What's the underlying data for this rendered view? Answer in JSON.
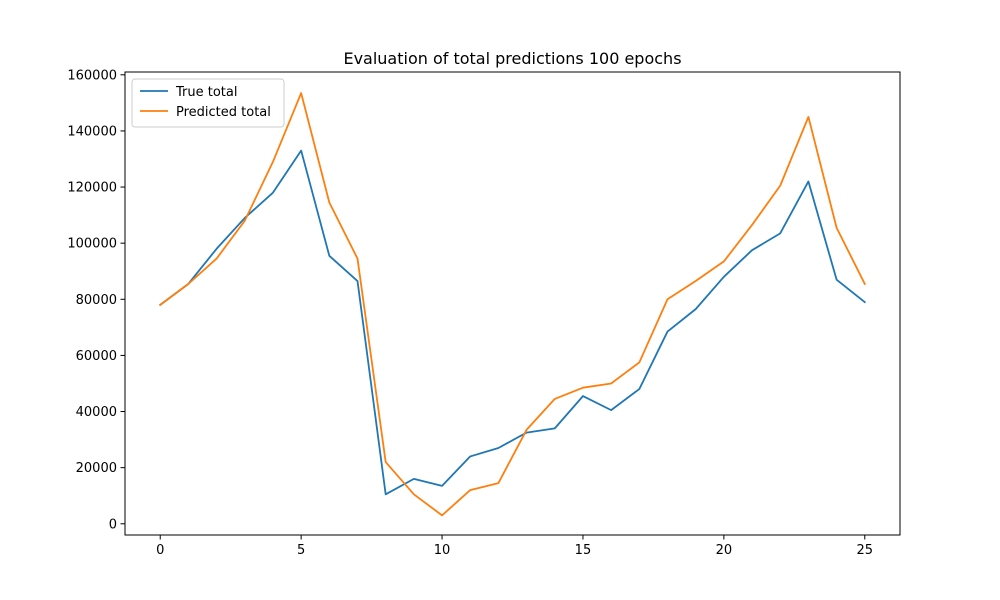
{
  "chart_data": {
    "type": "line",
    "title": "Evaluation of total predictions 100 epochs",
    "xlabel": "",
    "ylabel": "",
    "x": [
      0,
      1,
      2,
      3,
      4,
      5,
      6,
      7,
      8,
      9,
      10,
      11,
      12,
      13,
      14,
      15,
      16,
      17,
      18,
      19,
      20,
      21,
      22,
      23,
      24,
      25
    ],
    "xlim": [
      -1.25,
      26.25
    ],
    "ylim": [
      -4000,
      161000
    ],
    "xticks": [
      0,
      5,
      10,
      15,
      20,
      25
    ],
    "yticks": [
      0,
      20000,
      40000,
      60000,
      80000,
      100000,
      120000,
      140000,
      160000
    ],
    "grid": false,
    "legend_position": "upper left",
    "series": [
      {
        "name": "True total",
        "color": "#1f77b4",
        "values": [
          78000,
          85500,
          98000,
          109000,
          118000,
          133000,
          95500,
          86500,
          10500,
          16000,
          13500,
          24000,
          27000,
          32500,
          34000,
          45500,
          40500,
          48000,
          68500,
          76500,
          88000,
          97500,
          103500,
          122000,
          87000,
          79000
        ]
      },
      {
        "name": "Predicted total",
        "color": "#ff7f0e",
        "values": [
          78000,
          85500,
          94500,
          108000,
          129000,
          153500,
          114500,
          94500,
          22000,
          10500,
          3000,
          12000,
          14500,
          33500,
          44500,
          48500,
          50000,
          57500,
          80000,
          86500,
          93500,
          106500,
          120500,
          145000,
          105500,
          85500
        ]
      }
    ]
  }
}
